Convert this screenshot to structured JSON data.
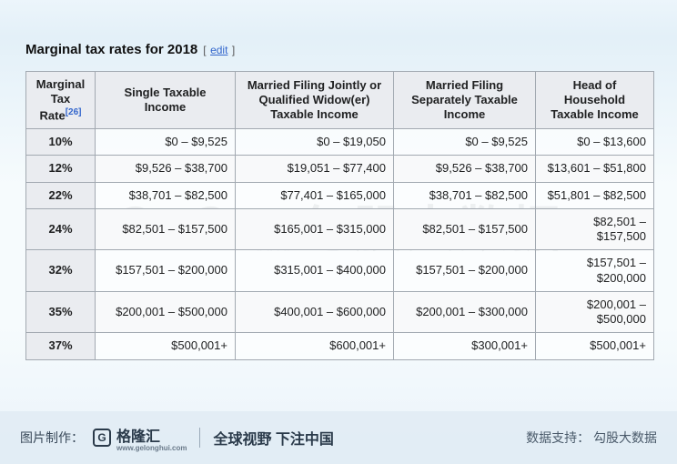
{
  "title": "Marginal tax rates for 2018",
  "edit": {
    "open": "[",
    "text": "edit",
    "close": "]"
  },
  "columns": [
    "Marginal Tax Rate",
    "Single Taxable Income",
    "Married Filing Jointly or Qualified Widow(er) Taxable Income",
    "Married Filing Separately Taxable Income",
    "Head of Household Taxable Income"
  ],
  "rate_sup": "[26]",
  "rows": [
    {
      "rate": "10%",
      "c": [
        "$0 – $9,525",
        "$0 – $19,050",
        "$0 – $9,525",
        "$0 – $13,600"
      ]
    },
    {
      "rate": "12%",
      "c": [
        "$9,526 – $38,700",
        "$19,051 – $77,400",
        "$9,526 – $38,700",
        "$13,601 – $51,800"
      ]
    },
    {
      "rate": "22%",
      "c": [
        "$38,701 – $82,500",
        "$77,401 – $165,000",
        "$38,701 – $82,500",
        "$51,801 – $82,500"
      ]
    },
    {
      "rate": "24%",
      "c": [
        "$82,501 – $157,500",
        "$165,001 – $315,000",
        "$82,501 – $157,500",
        "$82,501 – $157,500"
      ]
    },
    {
      "rate": "32%",
      "c": [
        "$157,501 – $200,000",
        "$315,001 – $400,000",
        "$157,501 – $200,000",
        "$157,501 – $200,000"
      ]
    },
    {
      "rate": "35%",
      "c": [
        "$200,001 – $500,000",
        "$400,001 – $600,000",
        "$200,001 – $300,000",
        "$200,001 – $500,000"
      ]
    },
    {
      "rate": "37%",
      "c": [
        "$500,001+",
        "$600,001+",
        "$300,001+",
        "$500,001+"
      ]
    }
  ],
  "watermark": {
    "logo": "GoGu",
    "text": "勾股大数据"
  },
  "footer": {
    "left_label": "图片制作：",
    "brand": "格隆汇",
    "brand_sub": "www.gelonghui.com",
    "slogan": "全球视野 下注中国",
    "right_label": "数据支持：",
    "right_text": "勾股大数据"
  },
  "style": {
    "header_bg": "#eaecf0",
    "border": "#a2a9b1",
    "link": "#3366cc",
    "body_fontsize": 13,
    "title_fontsize": 15
  }
}
